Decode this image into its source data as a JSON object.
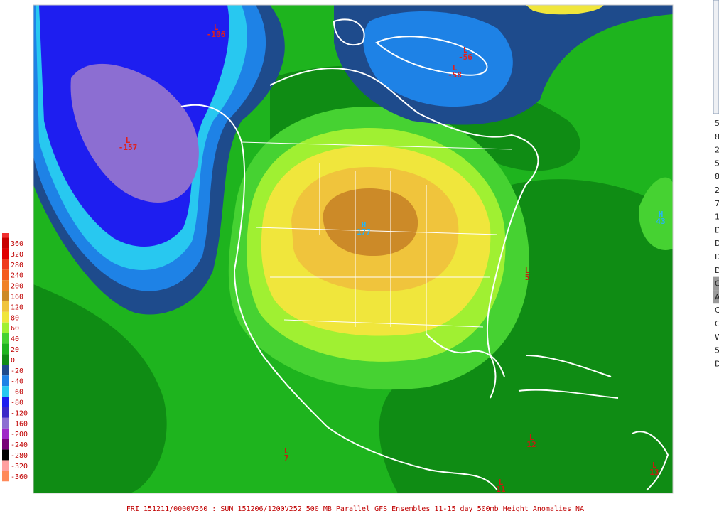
{
  "footer": "FRI 151211/0000V360 : SUN 151206/1200V252  500 MB Parallel GFS Ensembles 11-15 day 500mb Height Anomalies NA",
  "legend": [
    {
      "label": "360",
      "color": "#c80000"
    },
    {
      "label": "320",
      "color": "#e00000"
    },
    {
      "label": "280",
      "color": "#ee3b1e"
    },
    {
      "label": "240",
      "color": "#f45a1e"
    },
    {
      "label": "200",
      "color": "#f08228"
    },
    {
      "label": "160",
      "color": "#cc8a28"
    },
    {
      "label": "120",
      "color": "#f0c43c"
    },
    {
      "label": "80",
      "color": "#f0e63c"
    },
    {
      "label": "60",
      "color": "#a0f032"
    },
    {
      "label": "40",
      "color": "#46d232"
    },
    {
      "label": "20",
      "color": "#1eb41e"
    },
    {
      "label": "0",
      "color": "#0f8c14"
    },
    {
      "label": "-20",
      "color": "#1e4b8c"
    },
    {
      "label": "-40",
      "color": "#1e82e6"
    },
    {
      "label": "-60",
      "color": "#28c8f0"
    },
    {
      "label": "-80",
      "color": "#1e1ef0"
    },
    {
      "label": "-120",
      "color": "#3c28c8"
    },
    {
      "label": "-160",
      "color": "#8c6ed2"
    },
    {
      "label": "-200",
      "color": "#a028c8"
    },
    {
      "label": "-240",
      "color": "#780078"
    },
    {
      "label": "-280",
      "color": "#000000"
    },
    {
      "label": "-320",
      "color": "#ffa0a0"
    },
    {
      "label": "-360",
      "color": "#ff8a5a"
    }
  ],
  "map_labels": [
    {
      "letter": "L",
      "value": "-106",
      "color": "#e0201e"
    },
    {
      "letter": "L",
      "value": "-56",
      "color": "#e0201e"
    },
    {
      "letter": "L",
      "value": "-58",
      "color": "#e0201e"
    },
    {
      "letter": "L",
      "value": "-157",
      "color": "#e0201e"
    },
    {
      "letter": "H",
      "value": "43",
      "color": "#28b4f0"
    },
    {
      "letter": "H",
      "value": "177",
      "color": "#28b4f0"
    },
    {
      "letter": "L",
      "value": "5",
      "color": "#c02010"
    },
    {
      "letter": "L",
      "value": "12",
      "color": "#c02010"
    },
    {
      "letter": "L",
      "value": "7",
      "color": "#c02010"
    },
    {
      "letter": "L",
      "value": "13",
      "color": "#c02010"
    },
    {
      "letter": "L",
      "value": "11",
      "color": "#c02010"
    }
  ],
  "side_panel": [
    "5",
    "8",
    "2",
    "5",
    "8",
    "2",
    "7",
    "1",
    "D",
    "D",
    "D",
    "D",
    "O",
    "A",
    "C",
    "C",
    "W",
    "5",
    "D"
  ]
}
